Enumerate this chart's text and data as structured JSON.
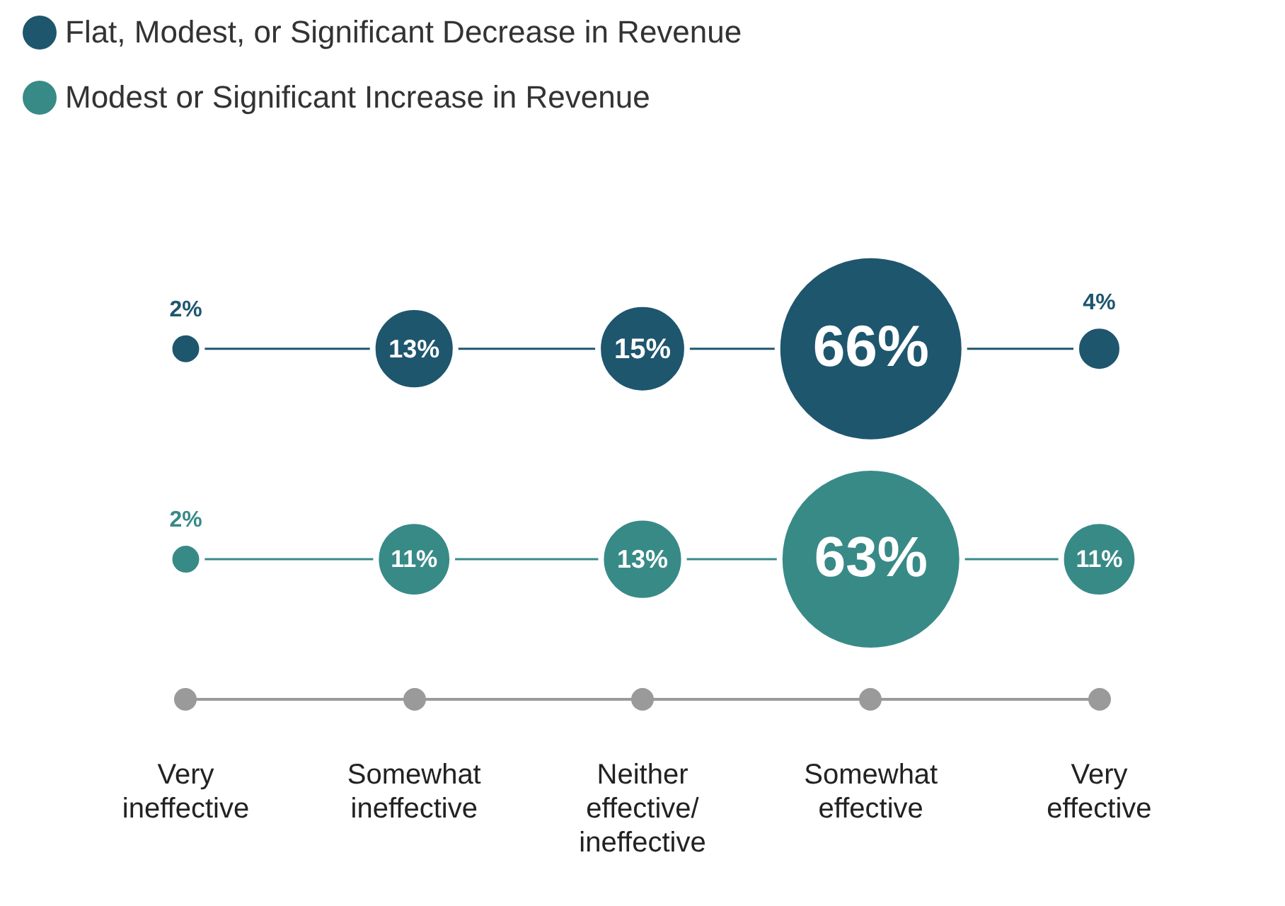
{
  "chart_data": {
    "type": "other",
    "categories": [
      "Very ineffective",
      "Somewhat ineffective",
      "Neither effective/ ineffective",
      "Somewhat effective",
      "Very effective"
    ],
    "series": [
      {
        "name": "Flat, Modest, or Significant Decrease in Revenue",
        "color": "#1e566e",
        "values": [
          2,
          13,
          15,
          66,
          4
        ],
        "value_labels": [
          "2%",
          "13%",
          "15%",
          "66%",
          "4%"
        ]
      },
      {
        "name": "Modest or Significant Increase in Revenue",
        "color": "#388a87",
        "values": [
          2,
          11,
          13,
          63,
          11
        ],
        "value_labels": [
          "2%",
          "11%",
          "13%",
          "63%",
          "11%"
        ]
      }
    ],
    "legend": "top left"
  }
}
